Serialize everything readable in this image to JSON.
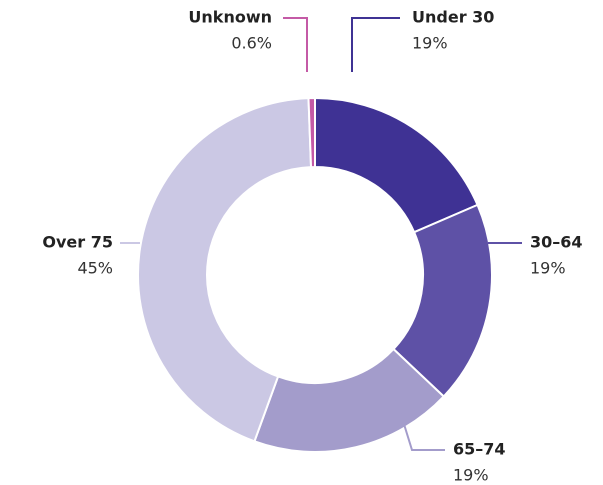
{
  "chart_data": {
    "type": "donut",
    "categories": [
      "Under 30",
      "30–64",
      "65–74",
      "Over 75",
      "Unknown"
    ],
    "values": [
      19,
      19,
      19,
      45,
      0.6
    ],
    "value_labels": [
      "19%",
      "19%",
      "19%",
      "45%",
      "0.6%"
    ],
    "colors": [
      "#3f3294",
      "#5e51a6",
      "#a39ccb",
      "#cbc8e4",
      "#c45aa6"
    ]
  }
}
